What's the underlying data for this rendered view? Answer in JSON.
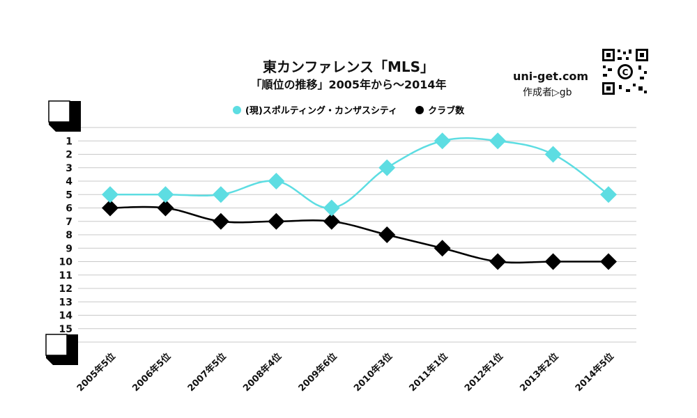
{
  "header": {
    "title": "東カンファレンス「MLS」",
    "subtitle": "「順位の推移」2005年から～2014年",
    "site": "uni-get.com",
    "author": "作成者▷gb"
  },
  "colors": {
    "team": "#5ddde2",
    "clubs": "#000000",
    "grid": "#c8c8c8"
  },
  "chart_data": {
    "type": "line",
    "categories": [
      "2005年5位",
      "2006年5位",
      "2007年5位",
      "2008年4位",
      "2009年6位",
      "2010年3位",
      "2011年1位",
      "2012年1位",
      "2013年2位",
      "2014年5位"
    ],
    "series": [
      {
        "name": "(現)スポルティング・カンザスシティ",
        "values": [
          5,
          5,
          5,
          4,
          6,
          3,
          1,
          1,
          2,
          5
        ]
      },
      {
        "name": "クラブ数",
        "values": [
          6,
          6,
          7,
          7,
          7,
          8,
          9,
          10,
          10,
          10
        ]
      }
    ],
    "y_ticks": [
      "1",
      "2",
      "3",
      "4",
      "5",
      "6",
      "7",
      "8",
      "9",
      "10",
      "11",
      "12",
      "13",
      "14",
      "15"
    ],
    "ylim": [
      0,
      16
    ],
    "y_inverted": true,
    "grid": true,
    "legend_position": "top-center"
  }
}
